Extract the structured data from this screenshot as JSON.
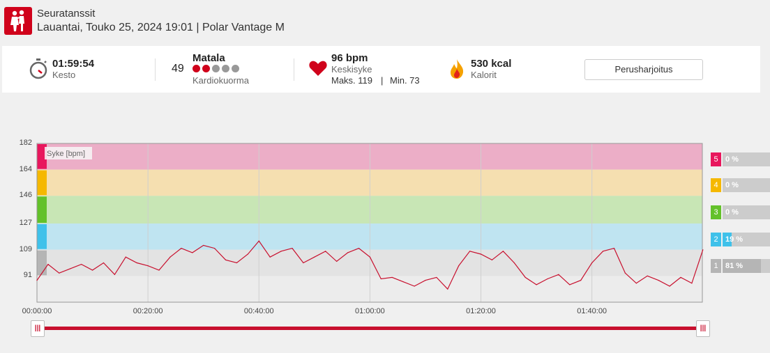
{
  "header": {
    "sport_icon": "dancing-couple-icon",
    "sport_name": "Seuratanssit",
    "date_line": "Lauantai, Touko 25, 2024 19:01 | Polar Vantage M"
  },
  "summary": {
    "duration_value": "01:59:54",
    "duration_label": "Kesto",
    "cardio_number": "49",
    "cardio_level": "Matala",
    "cardio_label": "Kardiokuorma",
    "cardio_dots_filled": 2,
    "cardio_dots_total": 5,
    "hr_value": "96 bpm",
    "hr_label": "Keskisyke",
    "hr_max": "Maks. 119",
    "hr_sep": "|",
    "hr_min": "Min. 73",
    "kcal_value": "530 kcal",
    "kcal_label": "Kalorit",
    "button_label": "Perusharjoitus",
    "colors": {
      "accent": "#d0021b"
    }
  },
  "chart_data": {
    "type": "line",
    "ylabel": "Syke [bpm]",
    "ylim": [
      73,
      182
    ],
    "yticks": [
      "182",
      "164",
      "146",
      "127",
      "109",
      "91"
    ],
    "xlim": [
      "00:00:00",
      "01:59:54"
    ],
    "xticks": [
      "00:00:00",
      "00:20:00",
      "00:40:00",
      "01:00:00",
      "01:20:00",
      "01:40:00"
    ],
    "zones": [
      {
        "zone": "5",
        "from": 164,
        "to": 182,
        "percent": "0 %",
        "color": "#e8175d",
        "band": "#ecaec7"
      },
      {
        "zone": "4",
        "from": 146,
        "to": 164,
        "percent": "0 %",
        "color": "#f5b800",
        "band": "#f5dfb0"
      },
      {
        "zone": "3",
        "from": 127,
        "to": 146,
        "percent": "0 %",
        "color": "#63c12a",
        "band": "#c8e6b5"
      },
      {
        "zone": "2",
        "from": 109,
        "to": 127,
        "percent": "19 %",
        "color": "#3fc1ea",
        "band": "#bfe4f1"
      },
      {
        "zone": "1",
        "from": 91,
        "to": 109,
        "percent": "81 %",
        "color": "#b5b5b5",
        "band": "#e3e3e3"
      }
    ],
    "series": [
      {
        "x_minutes": [
          0,
          2,
          4,
          6,
          8,
          10,
          12,
          14,
          16,
          18,
          20,
          22,
          24,
          26,
          28,
          30,
          32,
          34,
          36,
          38,
          40,
          42,
          44,
          46,
          48,
          50,
          52,
          54,
          56,
          58,
          60,
          62,
          64,
          66,
          68,
          70,
          72,
          74,
          76,
          78,
          80,
          82,
          84,
          86,
          88,
          90,
          92,
          94,
          96,
          98,
          100,
          102,
          104,
          106,
          108,
          110,
          112,
          114,
          116,
          118,
          120
        ],
        "values": [
          88,
          99,
          93,
          96,
          99,
          95,
          100,
          92,
          104,
          100,
          98,
          95,
          104,
          110,
          107,
          112,
          110,
          102,
          100,
          106,
          115,
          104,
          108,
          110,
          100,
          104,
          108,
          101,
          107,
          110,
          104,
          89,
          90,
          87,
          84,
          88,
          90,
          82,
          98,
          108,
          106,
          102,
          108,
          100,
          90,
          85,
          89,
          92,
          85,
          88,
          100,
          108,
          110,
          93,
          86,
          91,
          88,
          84,
          90,
          86,
          109
        ]
      }
    ]
  }
}
